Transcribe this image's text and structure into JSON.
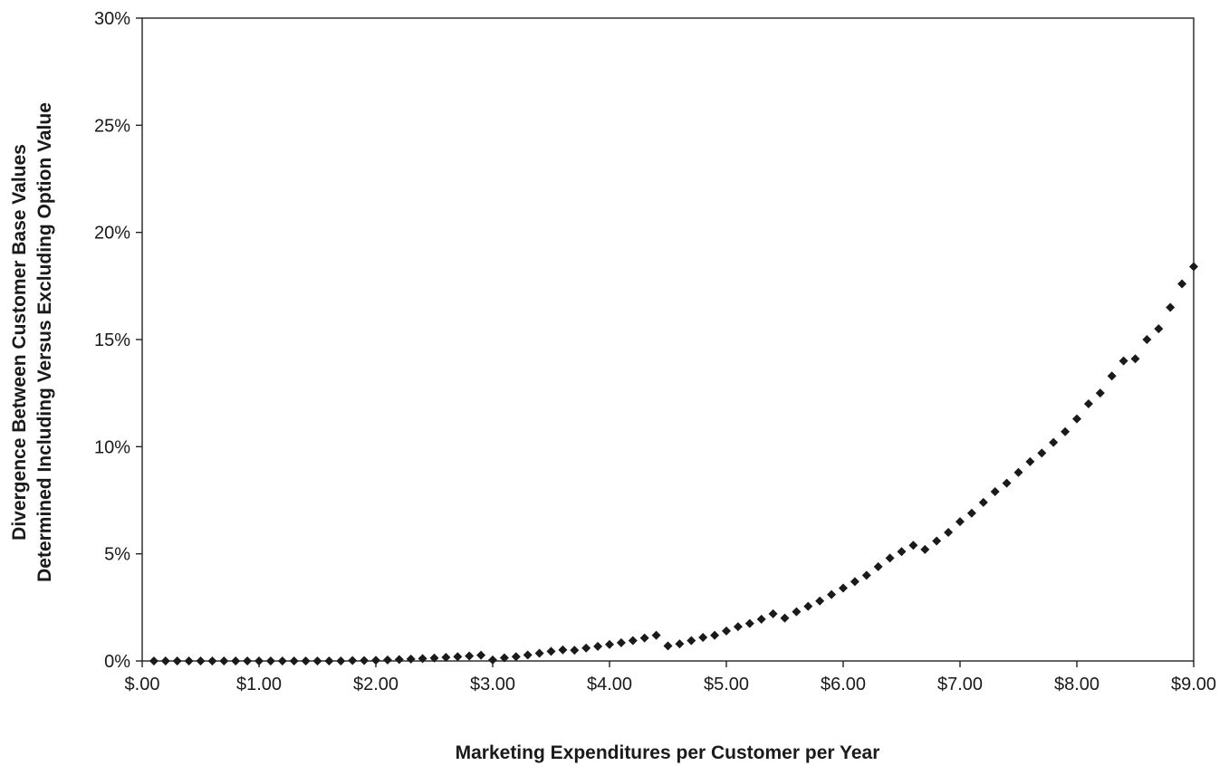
{
  "chart_data": {
    "type": "scatter",
    "title": "",
    "xlabel": "Marketing Expenditures per Customer per Year",
    "ylabel_lines": [
      "Divergence Between Customer Base Values",
      "Determined Including Versus Excluding Option Value"
    ],
    "xlim": [
      0,
      9
    ],
    "ylim": [
      0,
      30
    ],
    "x_ticks": [
      {
        "value": 0,
        "label": "$.00"
      },
      {
        "value": 1,
        "label": "$1.00"
      },
      {
        "value": 2,
        "label": "$2.00"
      },
      {
        "value": 3,
        "label": "$3.00"
      },
      {
        "value": 4,
        "label": "$4.00"
      },
      {
        "value": 5,
        "label": "$5.00"
      },
      {
        "value": 6,
        "label": "$6.00"
      },
      {
        "value": 7,
        "label": "$7.00"
      },
      {
        "value": 8,
        "label": "$8.00"
      },
      {
        "value": 9,
        "label": "$9.00"
      }
    ],
    "y_ticks": [
      {
        "value": 0,
        "label": "0%"
      },
      {
        "value": 5,
        "label": "5%"
      },
      {
        "value": 10,
        "label": "10%"
      },
      {
        "value": 15,
        "label": "15%"
      },
      {
        "value": 20,
        "label": "20%"
      },
      {
        "value": 25,
        "label": "25%"
      },
      {
        "value": 30,
        "label": "30%"
      }
    ],
    "grid": false,
    "marker": "diamond",
    "marker_color": "#1a1a1a",
    "x": [
      0.1,
      0.2,
      0.3,
      0.4,
      0.5,
      0.6,
      0.7,
      0.8,
      0.9,
      1.0,
      1.1,
      1.2,
      1.3,
      1.4,
      1.5,
      1.6,
      1.7,
      1.8,
      1.9,
      2.0,
      2.1,
      2.2,
      2.3,
      2.4,
      2.5,
      2.6,
      2.7,
      2.8,
      2.9,
      3.0,
      3.1,
      3.2,
      3.3,
      3.4,
      3.5,
      3.6,
      3.7,
      3.8,
      3.9,
      4.0,
      4.1,
      4.2,
      4.3,
      4.4,
      4.5,
      4.6,
      4.7,
      4.8,
      4.9,
      5.0,
      5.1,
      5.2,
      5.3,
      5.4,
      5.5,
      5.6,
      5.7,
      5.8,
      5.9,
      6.0,
      6.1,
      6.2,
      6.3,
      6.4,
      6.5,
      6.6,
      6.7,
      6.8,
      6.9,
      7.0,
      7.1,
      7.2,
      7.3,
      7.4,
      7.5,
      7.6,
      7.7,
      7.8,
      7.9,
      8.0,
      8.1,
      8.2,
      8.3,
      8.4,
      8.5,
      8.6,
      8.7,
      8.8,
      8.9,
      9.0
    ],
    "y": [
      0.0,
      0.0,
      0.0,
      0.0,
      0.0,
      0.0,
      0.0,
      0.0,
      0.0,
      0.0,
      0.0,
      0.0,
      0.0,
      0.0,
      0.0,
      0.0,
      0.0,
      0.02,
      0.02,
      0.03,
      0.05,
      0.07,
      0.09,
      0.11,
      0.14,
      0.17,
      0.2,
      0.23,
      0.27,
      0.05,
      0.15,
      0.2,
      0.28,
      0.36,
      0.45,
      0.52,
      0.5,
      0.6,
      0.68,
      0.77,
      0.85,
      0.95,
      1.07,
      1.2,
      0.7,
      0.8,
      0.95,
      1.1,
      1.2,
      1.4,
      1.6,
      1.75,
      1.95,
      2.2,
      2.0,
      2.3,
      2.55,
      2.8,
      3.1,
      3.4,
      3.7,
      4.0,
      4.4,
      4.8,
      5.1,
      5.4,
      5.2,
      5.6,
      6.0,
      6.5,
      6.9,
      7.4,
      7.9,
      8.3,
      8.8,
      9.3,
      9.7,
      10.2,
      10.7,
      11.3,
      12.0,
      12.5,
      13.3,
      14.0,
      14.1,
      15.0,
      15.5,
      16.5,
      17.6,
      18.4
    ]
  }
}
